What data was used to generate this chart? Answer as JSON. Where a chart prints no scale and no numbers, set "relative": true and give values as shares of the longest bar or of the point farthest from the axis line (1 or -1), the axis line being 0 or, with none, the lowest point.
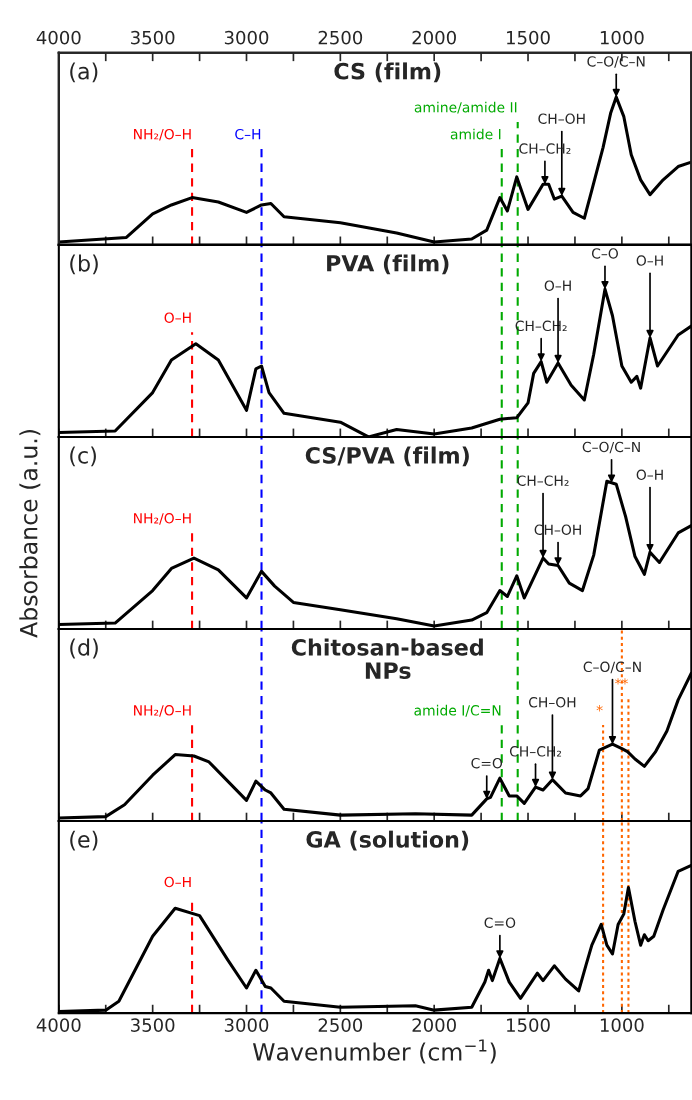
{
  "chart_data": [
    {
      "type": "line",
      "relative": true,
      "title": "CS (film)",
      "xlim": [
        4000,
        630
      ],
      "tick_labels": false,
      "xticks": [
        4000,
        {
          "value": 3750,
          "label": null
        },
        3500,
        {
          "value": 3250,
          "label": null
        },
        3000,
        {
          "value": 2750,
          "label": null
        },
        2500,
        {
          "value": 2250,
          "label": null
        },
        2000,
        {
          "value": 1750,
          "label": null
        },
        1500,
        {
          "value": 1250,
          "label": null
        },
        1000,
        {
          "value": 750,
          "label": null
        }
      ],
      "x2lim": [
        4000,
        630
      ],
      "x2ticks": [
        4000,
        {
          "value": 3750,
          "label": null
        },
        3500,
        {
          "value": 3250,
          "label": null
        },
        3000,
        {
          "value": 2750,
          "label": null
        },
        2500,
        {
          "value": 2250,
          "label": null
        },
        2000,
        {
          "value": 1750,
          "label": null
        },
        1500,
        {
          "value": 1250,
          "label": null
        },
        1000,
        {
          "value": 750,
          "label": null
        }
      ],
      "x": [
        4000,
        3640,
        3500,
        3400,
        3290,
        3150,
        3000,
        2920,
        2870,
        2800,
        2500,
        2200,
        2000,
        1800,
        1720,
        1650,
        1610,
        1560,
        1500,
        1420,
        1390,
        1360,
        1320,
        1260,
        1200,
        1160,
        1100,
        1060,
        1030,
        990,
        950,
        900,
        850,
        780,
        700,
        630
      ],
      "series": [
        {
          "color": "#000000",
          "values": [
            0.02,
            0.05,
            0.21,
            0.27,
            0.32,
            0.29,
            0.22,
            0.27,
            0.28,
            0.19,
            0.15,
            0.08,
            0.02,
            0.04,
            0.1,
            0.32,
            0.23,
            0.46,
            0.24,
            0.41,
            0.41,
            0.31,
            0.33,
            0.22,
            0.18,
            0.37,
            0.66,
            0.89,
            1,
            0.87,
            0.61,
            0.44,
            0.34,
            0.44,
            0.53,
            0.56
          ]
        }
      ],
      "ref_lines": [
        {
          "axis": "x",
          "value": 3290,
          "label": "NH₂/O–H",
          "color": "#ff0000",
          "line_style": "dashed"
        },
        {
          "axis": "x",
          "value": 2920,
          "label": "C–H",
          "color": "#0000ff",
          "line_style": "dashed"
        },
        {
          "axis": "x",
          "value": 1640,
          "label": "amide I",
          "color": "#00aa00",
          "line_style": "dashed"
        },
        {
          "axis": "x",
          "value": 1555,
          "label": "amine/amide II",
          "color": "#00aa00",
          "line_style": "dashed"
        }
      ],
      "annotations": [
        "(a)",
        {
          "text": "C–O/C–N",
          "x": 1030,
          "y": 1
        },
        {
          "text": "CH–OH",
          "x": 1320,
          "y": 0.33
        },
        {
          "text": "CH–CH₂",
          "x": 1410,
          "y": 0.41
        }
      ]
    },
    {
      "type": "line",
      "relative": true,
      "title": "PVA (film)",
      "xlim": [
        4000,
        630
      ],
      "tick_labels": false,
      "xticks": [
        4000,
        {
          "value": 3750,
          "label": null
        },
        3500,
        {
          "value": 3250,
          "label": null
        },
        3000,
        {
          "value": 2750,
          "label": null
        },
        2500,
        {
          "value": 2250,
          "label": null
        },
        2000,
        {
          "value": 1750,
          "label": null
        },
        1500,
        {
          "value": 1250,
          "label": null
        },
        1000,
        {
          "value": 750,
          "label": null
        }
      ],
      "x": [
        4000,
        3700,
        3500,
        3400,
        3270,
        3150,
        3000,
        2950,
        2920,
        2880,
        2800,
        2500,
        2350,
        2200,
        2000,
        1800,
        1650,
        1560,
        1500,
        1470,
        1430,
        1400,
        1340,
        1270,
        1200,
        1150,
        1090,
        1050,
        1000,
        950,
        920,
        900,
        850,
        810,
        700,
        630
      ],
      "series": [
        {
          "color": "#000000",
          "values": [
            0.03,
            0.04,
            0.3,
            0.52,
            0.63,
            0.52,
            0.18,
            0.46,
            0.48,
            0.3,
            0.16,
            0.1,
            0,
            0.05,
            0.02,
            0.06,
            0.12,
            0.13,
            0.23,
            0.43,
            0.51,
            0.37,
            0.5,
            0.35,
            0.25,
            0.56,
            1,
            0.82,
            0.48,
            0.37,
            0.41,
            0.33,
            0.67,
            0.48,
            0.69,
            0.75
          ]
        }
      ],
      "ref_lines": [
        {
          "axis": "x",
          "value": 3290,
          "label": "O–H",
          "color": "#ff0000",
          "line_style": "dashed"
        },
        {
          "axis": "x",
          "value": 2920,
          "label": null,
          "color": "#0000ff",
          "line_style": "dashed"
        },
        {
          "axis": "x",
          "value": 1640,
          "label": null,
          "color": "#00aa00",
          "line_style": "dashed"
        },
        {
          "axis": "x",
          "value": 1555,
          "label": null,
          "color": "#00aa00",
          "line_style": "dashed"
        }
      ],
      "annotations": [
        "(b)",
        {
          "text": "CH–CH₂",
          "x": 1430,
          "y": 0.51
        },
        {
          "text": "O–H",
          "x": 1340,
          "y": 0.5
        },
        {
          "text": "C–O",
          "x": 1090,
          "y": 1
        },
        {
          "text": "O–H",
          "x": 850,
          "y": 0.67
        }
      ]
    },
    {
      "type": "line",
      "relative": true,
      "title": "CS/PVA (film)",
      "ylabel": "Absorbance (a.u.)",
      "xlim": [
        4000,
        630
      ],
      "tick_labels": false,
      "xticks": [
        4000,
        {
          "value": 3750,
          "label": null
        },
        3500,
        {
          "value": 3250,
          "label": null
        },
        3000,
        {
          "value": 2750,
          "label": null
        },
        2500,
        {
          "value": 2250,
          "label": null
        },
        2000,
        {
          "value": 1750,
          "label": null
        },
        1500,
        {
          "value": 1250,
          "label": null
        },
        1000,
        {
          "value": 750,
          "label": null
        }
      ],
      "x": [
        4000,
        3700,
        3500,
        3400,
        3280,
        3150,
        3000,
        2920,
        2850,
        2750,
        2500,
        2200,
        2000,
        1800,
        1720,
        1650,
        1610,
        1560,
        1520,
        1420,
        1390,
        1340,
        1280,
        1210,
        1150,
        1080,
        1030,
        980,
        930,
        880,
        850,
        800,
        700,
        630
      ],
      "series": [
        {
          "color": "#000000",
          "values": [
            0.03,
            0.04,
            0.26,
            0.41,
            0.48,
            0.4,
            0.21,
            0.39,
            0.29,
            0.18,
            0.13,
            0.07,
            0.02,
            0.06,
            0.11,
            0.26,
            0.22,
            0.36,
            0.21,
            0.48,
            0.44,
            0.43,
            0.31,
            0.26,
            0.5,
            1,
            0.98,
            0.76,
            0.49,
            0.37,
            0.52,
            0.45,
            0.65,
            0.7
          ]
        }
      ],
      "ref_lines": [
        {
          "axis": "x",
          "value": 3290,
          "label": "NH₂/O–H",
          "color": "#ff0000",
          "line_style": "dashed"
        },
        {
          "axis": "x",
          "value": 2920,
          "label": null,
          "color": "#0000ff",
          "line_style": "dashed"
        },
        {
          "axis": "x",
          "value": 1640,
          "label": null,
          "color": "#00aa00",
          "line_style": "dashed"
        },
        {
          "axis": "x",
          "value": 1555,
          "label": null,
          "color": "#00aa00",
          "line_style": "dashed"
        }
      ],
      "annotations": [
        "(c)",
        {
          "text": "C–O/C–N",
          "x": 1055,
          "y": 0.99
        },
        {
          "text": "CH–CH₂",
          "x": 1420,
          "y": 0.48
        },
        {
          "text": "CH–OH",
          "x": 1340,
          "y": 0.43
        },
        {
          "text": "O–H",
          "x": 850,
          "y": 0.52
        }
      ]
    },
    {
      "type": "line",
      "relative": true,
      "title": "Chitosan-based\nNPs",
      "xlim": [
        4000,
        630
      ],
      "tick_labels": false,
      "xticks": [
        4000,
        {
          "value": 3750,
          "label": null
        },
        3500,
        {
          "value": 3250,
          "label": null
        },
        3000,
        {
          "value": 2750,
          "label": null
        },
        2500,
        {
          "value": 2250,
          "label": null
        },
        2000,
        {
          "value": 1750,
          "label": null
        },
        1500,
        {
          "value": 1250,
          "label": null
        },
        1000,
        {
          "value": 750,
          "label": null
        }
      ],
      "x": [
        4000,
        3750,
        3650,
        3500,
        3380,
        3280,
        3200,
        3000,
        2950,
        2900,
        2870,
        2800,
        2500,
        2100,
        1800,
        1720,
        1700,
        1650,
        1600,
        1560,
        1520,
        1460,
        1420,
        1370,
        1300,
        1220,
        1180,
        1120,
        1050,
        1000,
        970,
        930,
        880,
        820,
        760,
        700,
        630
      ],
      "series": [
        {
          "color": "#000000",
          "values": [
            0.02,
            0.03,
            0.11,
            0.31,
            0.45,
            0.44,
            0.4,
            0.14,
            0.27,
            0.21,
            0.19,
            0.08,
            0.04,
            0.05,
            0.04,
            0.15,
            0.16,
            0.29,
            0.17,
            0.17,
            0.12,
            0.23,
            0.21,
            0.28,
            0.19,
            0.17,
            0.22,
            0.48,
            0.52,
            0.49,
            0.47,
            0.42,
            0.37,
            0.47,
            0.61,
            0.82,
            1
          ]
        }
      ],
      "ref_lines": [
        {
          "axis": "x",
          "value": 3290,
          "label": "NH₂/O–H",
          "color": "#ff0000",
          "line_style": "dashed"
        },
        {
          "axis": "x",
          "value": 2920,
          "label": null,
          "color": "#0000ff",
          "line_style": "dashed"
        },
        {
          "axis": "x",
          "value": 1640,
          "label": "amide I/C=N",
          "color": "#00aa00",
          "line_style": "dashed"
        },
        {
          "axis": "x",
          "value": 1555,
          "label": null,
          "color": "#00aa00",
          "line_style": "dashed"
        },
        {
          "axis": "x",
          "value": 1100,
          "label": "*",
          "color": "#ff6600",
          "line_style": "dotted"
        },
        {
          "axis": "x",
          "value": 1000,
          "label": null,
          "color": "#ff6600",
          "line_style": "dotted"
        },
        {
          "axis": "x",
          "value": 965,
          "label": "**",
          "color": "#ff6600",
          "line_style": "dotted"
        }
      ],
      "annotations": [
        "(d)",
        {
          "text": "CH–CH₂",
          "x": 1460,
          "y": 0.23
        },
        {
          "text": "C–O/C–N",
          "x": 1050,
          "y": 0.52
        },
        {
          "text": "C=O",
          "x": 1720,
          "y": 0.15
        },
        {
          "text": "CH–OH",
          "x": 1370,
          "y": 0.28
        }
      ]
    },
    {
      "type": "line",
      "relative": true,
      "title": "GA (solution)",
      "xlabel": "Wavenumber (cm$^{−1}$)",
      "xlim": [
        4000,
        630
      ],
      "tick_labels": "x",
      "xticks": [
        4000,
        {
          "value": 3750,
          "label": null
        },
        3500,
        {
          "value": 3250,
          "label": null
        },
        3000,
        {
          "value": 2750,
          "label": null
        },
        2500,
        {
          "value": 2250,
          "label": null
        },
        2000,
        {
          "value": 1750,
          "label": null
        },
        1500,
        {
          "value": 1250,
          "label": null
        },
        1000,
        {
          "value": 750,
          "label": null
        }
      ],
      "x": [
        4000,
        3750,
        3680,
        3500,
        3380,
        3250,
        3100,
        3000,
        2950,
        2900,
        2870,
        2800,
        2500,
        2100,
        2000,
        1800,
        1730,
        1710,
        1690,
        1650,
        1600,
        1540,
        1450,
        1420,
        1360,
        1300,
        1230,
        1190,
        1160,
        1110,
        1080,
        1050,
        1020,
        990,
        965,
        930,
        900,
        880,
        860,
        830,
        780,
        700,
        630
      ],
      "series": [
        {
          "color": "#000000",
          "values": [
            0.01,
            0.02,
            0.08,
            0.52,
            0.71,
            0.66,
            0.36,
            0.17,
            0.29,
            0.18,
            0.17,
            0.08,
            0.04,
            0.05,
            0.02,
            0.04,
            0.21,
            0.29,
            0.22,
            0.37,
            0.21,
            0.1,
            0.27,
            0.22,
            0.32,
            0.23,
            0.15,
            0.33,
            0.46,
            0.6,
            0.46,
            0.4,
            0.6,
            0.67,
            0.85,
            0.62,
            0.46,
            0.53,
            0.49,
            0.52,
            0.7,
            0.96,
            1
          ]
        }
      ],
      "ref_lines": [
        {
          "axis": "x",
          "value": 3290,
          "label": "O–H",
          "color": "#ff0000",
          "line_style": "dashed"
        },
        {
          "axis": "x",
          "value": 2920,
          "label": null,
          "color": "#0000ff",
          "line_style": "dashed"
        },
        {
          "axis": "x",
          "value": 1100,
          "label": null,
          "color": "#ff6600",
          "line_style": "dotted"
        },
        {
          "axis": "x",
          "value": 1000,
          "label": null,
          "color": "#ff6600",
          "line_style": "dotted"
        },
        {
          "axis": "x",
          "value": 965,
          "label": null,
          "color": "#ff6600",
          "line_style": "dotted"
        }
      ],
      "annotations": [
        "(e)",
        {
          "text": "C=O",
          "x": 1650,
          "y": 0.37
        }
      ]
    }
  ]
}
